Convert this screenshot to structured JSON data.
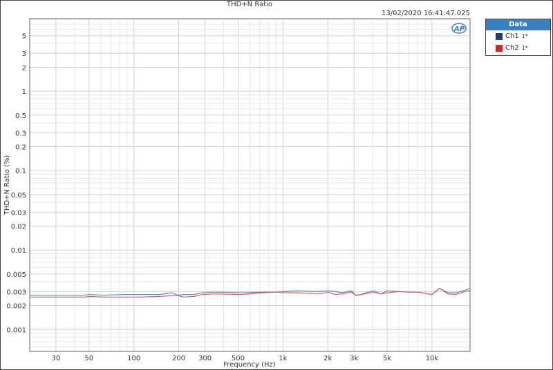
{
  "chart_data": {
    "type": "line",
    "title": "THD+N Ratio",
    "timestamp": "13/02/2020 16:41:47.025",
    "xlabel": "Frequency (Hz)",
    "ylabel": "THD+N Ratio (%)",
    "xscale": "log",
    "yscale": "log",
    "xlim": [
      20,
      18000
    ],
    "ylim": [
      0.00053,
      8.2
    ],
    "grid": true,
    "legend_placement": "right",
    "legend_title": "Data",
    "x_ticks": [
      {
        "v": 30,
        "label": "30"
      },
      {
        "v": 50,
        "label": "50"
      },
      {
        "v": 100,
        "label": "100"
      },
      {
        "v": 200,
        "label": "200"
      },
      {
        "v": 300,
        "label": "300"
      },
      {
        "v": 500,
        "label": "500"
      },
      {
        "v": 1000,
        "label": "1k"
      },
      {
        "v": 2000,
        "label": "2k"
      },
      {
        "v": 3000,
        "label": "3k"
      },
      {
        "v": 5000,
        "label": "5k"
      },
      {
        "v": 10000,
        "label": "10k"
      }
    ],
    "y_ticks": [
      {
        "v": 5,
        "label": "5"
      },
      {
        "v": 3,
        "label": "3"
      },
      {
        "v": 2,
        "label": "2"
      },
      {
        "v": 1,
        "label": "1"
      },
      {
        "v": 0.5,
        "label": "0.5"
      },
      {
        "v": 0.3,
        "label": "0.3"
      },
      {
        "v": 0.2,
        "label": "0.2"
      },
      {
        "v": 0.1,
        "label": "0.1"
      },
      {
        "v": 0.05,
        "label": "0.05"
      },
      {
        "v": 0.03,
        "label": "0.03"
      },
      {
        "v": 0.02,
        "label": "0.02"
      },
      {
        "v": 0.01,
        "label": "0.01"
      },
      {
        "v": 0.005,
        "label": "0.005"
      },
      {
        "v": 0.003,
        "label": "0.003"
      },
      {
        "v": 0.002,
        "label": "0.002"
      },
      {
        "v": 0.001,
        "label": "0.001"
      }
    ],
    "x": [
      20,
      46,
      51,
      63,
      87,
      108,
      149,
      180,
      198,
      215,
      253,
      287,
      348,
      533,
      734,
      909,
      1011,
      1251,
      1722,
      2020,
      2250,
      2500,
      2870,
      3090,
      4040,
      4540,
      5000,
      6050,
      6880,
      8080,
      10000,
      11230,
      12790,
      14500,
      16480,
      17900
    ],
    "series": [
      {
        "name": "Ch1",
        "suffix": "1*",
        "color": "#6a86aa",
        "swatch": "#1f3a78",
        "values": [
          0.0027,
          0.0027,
          0.00276,
          0.0027,
          0.00276,
          0.00276,
          0.00276,
          0.0029,
          0.0027,
          0.00276,
          0.00276,
          0.0029,
          0.00295,
          0.0029,
          0.00295,
          0.00295,
          0.003,
          0.00307,
          0.003,
          0.00307,
          0.003,
          0.0029,
          0.00307,
          0.00267,
          0.00307,
          0.0028,
          0.00307,
          0.003,
          0.00295,
          0.00295,
          0.00276,
          0.0033,
          0.0029,
          0.0029,
          0.0031,
          0.00326
        ]
      },
      {
        "name": "Ch2",
        "suffix": "1*",
        "color": "#d0606e",
        "swatch": "#cc2a2a",
        "values": [
          0.00256,
          0.00256,
          0.0026,
          0.00256,
          0.00256,
          0.00256,
          0.0026,
          0.00267,
          0.00267,
          0.00256,
          0.0026,
          0.00276,
          0.0028,
          0.00276,
          0.0029,
          0.00295,
          0.0029,
          0.0029,
          0.0028,
          0.00295,
          0.00276,
          0.0028,
          0.00295,
          0.00267,
          0.00295,
          0.0028,
          0.0029,
          0.003,
          0.00295,
          0.00295,
          0.00276,
          0.0033,
          0.0028,
          0.00276,
          0.003,
          0.00307
        ]
      }
    ]
  }
}
